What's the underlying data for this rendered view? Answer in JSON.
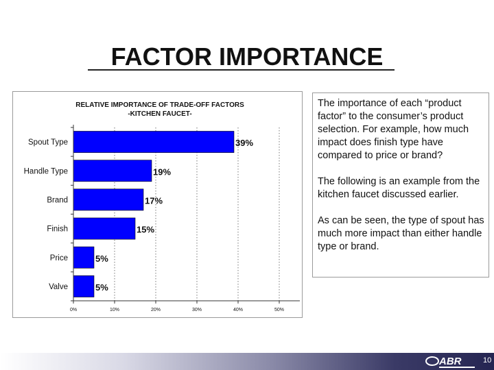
{
  "slide": {
    "title": "FACTOR IMPORTANCE",
    "page_number": "10",
    "logo_text": "ABR",
    "footer_color_dark": "#252552"
  },
  "textbox": {
    "paragraphs": [
      "The importance of each “product factor” to the consumer’s product selection.  For example, how much impact does finish type have compared to price or brand?",
      "The following is an example from the kitchen faucet discussed earlier.",
      "As can be seen, the type of spout has much more impact than either handle type or brand."
    ]
  },
  "chart_data": {
    "type": "bar",
    "orientation": "horizontal",
    "title": "RELATIVE IMPORTANCE OF TRADE-OFF FACTORS",
    "subtitle": "-KITCHEN FAUCET-",
    "categories": [
      "Spout Type",
      "Handle Type",
      "Brand",
      "Finish",
      "Price",
      "Valve"
    ],
    "values": [
      39,
      19,
      17,
      15,
      5,
      5
    ],
    "value_labels": [
      "39%",
      "19%",
      "17%",
      "15%",
      "5%",
      "5%"
    ],
    "xticks": [
      0,
      10,
      20,
      30,
      40,
      50
    ],
    "xtick_labels": [
      "0%",
      "10%",
      "20%",
      "30%",
      "40%",
      "50%"
    ],
    "xlim": [
      0,
      55
    ],
    "grid": "vertical dotted",
    "bar_color": "#0000ff"
  }
}
